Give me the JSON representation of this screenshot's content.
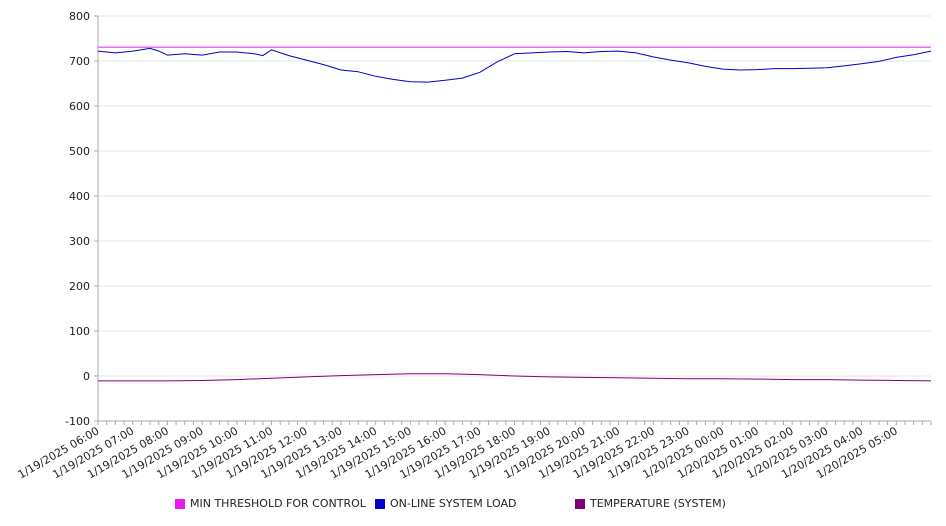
{
  "chart_data": {
    "type": "line",
    "title": "",
    "xlabel": "",
    "ylabel": "",
    "ylim": [
      -100,
      800
    ],
    "y_ticks": [
      "800",
      "700",
      "600",
      "500",
      "400",
      "300",
      "200",
      "100",
      "0",
      "-100"
    ],
    "x_ticks": [
      "1/19/2025 06:00",
      "1/19/2025 07:00",
      "1/19/2025 08:00",
      "1/19/2025 09:00",
      "1/19/2025 10:00",
      "1/19/2025 11:00",
      "1/19/2025 12:00",
      "1/19/2025 13:00",
      "1/19/2025 14:00",
      "1/19/2025 15:00",
      "1/19/2025 16:00",
      "1/19/2025 17:00",
      "1/19/2025 18:00",
      "1/19/2025 19:00",
      "1/19/2025 20:00",
      "1/19/2025 21:00",
      "1/19/2025 22:00",
      "1/19/2025 23:00",
      "1/20/2025 00:00",
      "1/20/2025 01:00",
      "1/20/2025 02:00",
      "1/20/2025 03:00",
      "1/20/2025 04:00",
      "1/20/2025 05:00"
    ],
    "x_range": [
      "1/19/2025 06:00",
      "1/20/2025 06:00"
    ],
    "grid": true,
    "legend_position": "bottom",
    "series": [
      {
        "name": "MIN THRESHOLD FOR CONTROL",
        "color": "#E81CE8",
        "points": [
          [
            "1/19/2025 06:00",
            731
          ],
          [
            "1/20/2025 06:00",
            731
          ]
        ]
      },
      {
        "name": "ON-LINE SYSTEM LOAD",
        "color": "#0000CC",
        "points": [
          [
            "1/19/2025 06:00",
            722
          ],
          [
            "1/19/2025 06:30",
            718
          ],
          [
            "1/19/2025 07:00",
            722
          ],
          [
            "1/19/2025 07:30",
            728
          ],
          [
            "1/19/2025 07:45",
            722
          ],
          [
            "1/19/2025 08:00",
            713
          ],
          [
            "1/19/2025 08:30",
            716
          ],
          [
            "1/19/2025 09:00",
            713
          ],
          [
            "1/19/2025 09:30",
            720
          ],
          [
            "1/19/2025 10:00",
            720
          ],
          [
            "1/19/2025 10:30",
            716
          ],
          [
            "1/19/2025 10:45",
            712
          ],
          [
            "1/19/2025 11:00",
            725
          ],
          [
            "1/19/2025 11:30",
            712
          ],
          [
            "1/19/2025 12:00",
            702
          ],
          [
            "1/19/2025 12:30",
            692
          ],
          [
            "1/19/2025 13:00",
            680
          ],
          [
            "1/19/2025 13:30",
            676
          ],
          [
            "1/19/2025 14:00",
            666
          ],
          [
            "1/19/2025 14:30",
            659
          ],
          [
            "1/19/2025 15:00",
            654
          ],
          [
            "1/19/2025 15:30",
            653
          ],
          [
            "1/19/2025 16:00",
            657
          ],
          [
            "1/19/2025 16:30",
            662
          ],
          [
            "1/19/2025 17:00",
            675
          ],
          [
            "1/19/2025 17:30",
            698
          ],
          [
            "1/19/2025 18:00",
            716
          ],
          [
            "1/19/2025 18:30",
            718
          ],
          [
            "1/19/2025 19:00",
            720
          ],
          [
            "1/19/2025 19:30",
            721
          ],
          [
            "1/19/2025 20:00",
            718
          ],
          [
            "1/19/2025 20:30",
            721
          ],
          [
            "1/19/2025 21:00",
            722
          ],
          [
            "1/19/2025 21:30",
            718
          ],
          [
            "1/19/2025 22:00",
            709
          ],
          [
            "1/19/2025 22:30",
            702
          ],
          [
            "1/19/2025 23:00",
            696
          ],
          [
            "1/19/2025 23:30",
            688
          ],
          [
            "1/20/2025 00:00",
            682
          ],
          [
            "1/20/2025 00:30",
            680
          ],
          [
            "1/20/2025 01:00",
            681
          ],
          [
            "1/20/2025 01:30",
            683
          ],
          [
            "1/20/2025 02:00",
            683
          ],
          [
            "1/20/2025 02:30",
            684
          ],
          [
            "1/20/2025 03:00",
            685
          ],
          [
            "1/20/2025 03:30",
            689
          ],
          [
            "1/20/2025 04:00",
            694
          ],
          [
            "1/20/2025 04:30",
            699
          ],
          [
            "1/20/2025 05:00",
            708
          ],
          [
            "1/20/2025 05:30",
            714
          ],
          [
            "1/20/2025 06:00",
            722
          ]
        ]
      },
      {
        "name": "TEMPERATURE (SYSTEM)",
        "color": "#800080",
        "points": [
          [
            "1/19/2025 06:00",
            -11
          ],
          [
            "1/19/2025 08:00",
            -11
          ],
          [
            "1/19/2025 09:00",
            -10
          ],
          [
            "1/19/2025 10:00",
            -8
          ],
          [
            "1/19/2025 11:00",
            -5
          ],
          [
            "1/19/2025 12:00",
            -2
          ],
          [
            "1/19/2025 13:00",
            1
          ],
          [
            "1/19/2025 14:00",
            3
          ],
          [
            "1/19/2025 15:00",
            5
          ],
          [
            "1/19/2025 16:00",
            5
          ],
          [
            "1/19/2025 17:00",
            3
          ],
          [
            "1/19/2025 18:00",
            0
          ],
          [
            "1/19/2025 19:00",
            -2
          ],
          [
            "1/19/2025 20:00",
            -3
          ],
          [
            "1/19/2025 21:00",
            -4
          ],
          [
            "1/19/2025 22:00",
            -5
          ],
          [
            "1/19/2025 23:00",
            -6
          ],
          [
            "1/20/2025 00:00",
            -6
          ],
          [
            "1/20/2025 01:00",
            -7
          ],
          [
            "1/20/2025 02:00",
            -8
          ],
          [
            "1/20/2025 03:00",
            -8
          ],
          [
            "1/20/2025 04:00",
            -9
          ],
          [
            "1/20/2025 05:00",
            -10
          ],
          [
            "1/20/2025 06:00",
            -11
          ]
        ]
      }
    ]
  }
}
